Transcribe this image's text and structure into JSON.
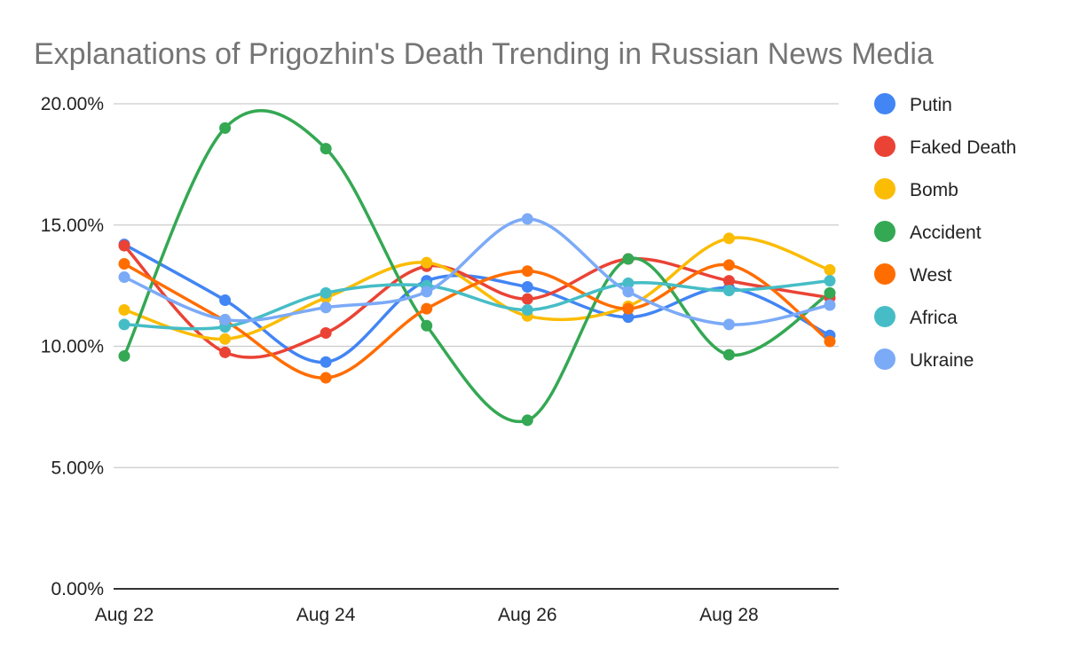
{
  "chart_data": {
    "type": "line",
    "title": "Explanations of Prigozhin's Death Trending in Russian News Media",
    "x": [
      "Aug 22",
      "Aug 23",
      "Aug 24",
      "Aug 25",
      "Aug 26",
      "Aug 27",
      "Aug 28",
      "Aug 29"
    ],
    "x_tick_labels": [
      "Aug 22",
      "Aug 24",
      "Aug 26",
      "Aug 28"
    ],
    "y_tick_labels": [
      "0.00%",
      "5.00%",
      "10.00%",
      "15.00%",
      "20.00%"
    ],
    "ylim": [
      0,
      20
    ],
    "y_unit": "%",
    "grid": true,
    "smooth": true,
    "legend_position": "right",
    "series": [
      {
        "name": "Putin",
        "color": "#4285F4",
        "values": [
          14.2,
          11.9,
          9.35,
          12.7,
          12.45,
          11.2,
          12.4,
          10.45
        ]
      },
      {
        "name": "Faked Death",
        "color": "#EA4335",
        "values": [
          14.15,
          9.75,
          10.55,
          13.3,
          11.95,
          13.6,
          12.7,
          12.0
        ]
      },
      {
        "name": "Bomb",
        "color": "#FBBC04",
        "values": [
          11.5,
          10.3,
          12.0,
          13.45,
          11.25,
          11.65,
          14.45,
          13.15
        ]
      },
      {
        "name": "Accident",
        "color": "#34A853",
        "values": [
          9.6,
          19.0,
          18.15,
          10.85,
          6.95,
          13.6,
          9.65,
          12.2
        ]
      },
      {
        "name": "West",
        "color": "#FF6D01",
        "values": [
          13.4,
          11.05,
          8.7,
          11.55,
          13.1,
          11.55,
          13.35,
          10.2
        ]
      },
      {
        "name": "Africa",
        "color": "#46BDC6",
        "values": [
          10.9,
          10.8,
          12.2,
          12.5,
          11.5,
          12.6,
          12.3,
          12.7
        ]
      },
      {
        "name": "Ukraine",
        "color": "#7BAAF7",
        "values": [
          12.85,
          11.1,
          11.6,
          12.25,
          15.25,
          12.25,
          10.9,
          11.7
        ]
      }
    ]
  }
}
